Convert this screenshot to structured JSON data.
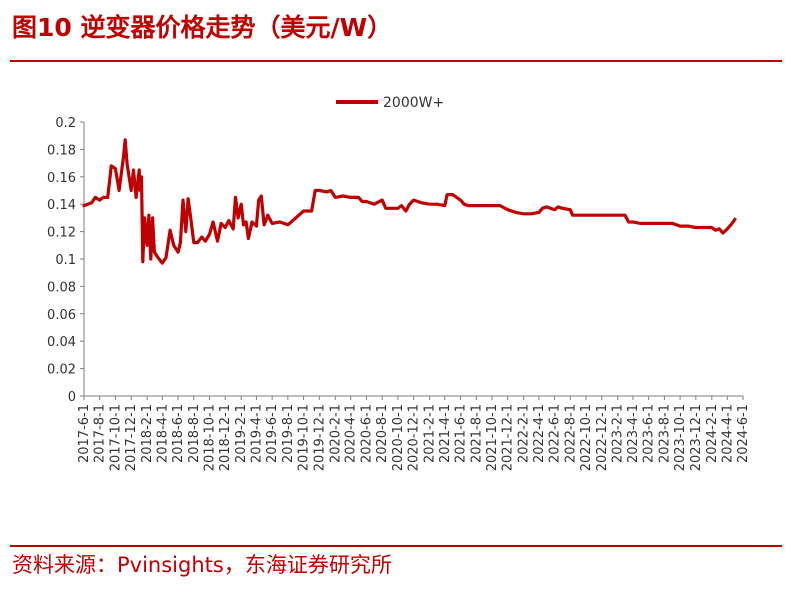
{
  "title": "图10  逆变器价格走势（美元/W）",
  "source": "资料来源：Pvinsights，东海证券研究所",
  "chart_data": {
    "type": "line",
    "ylim": [
      0,
      0.2
    ],
    "y_ticks": [
      "0",
      "0.02",
      "0.04",
      "0.06",
      "0.08",
      "0.1",
      "0.12",
      "0.14",
      "0.16",
      "0.18",
      "0.2"
    ],
    "x_ticks": [
      "2017-6-1",
      "2017-8-1",
      "2017-10-1",
      "2017-12-1",
      "2018-2-1",
      "2018-4-1",
      "2018-6-1",
      "2018-8-1",
      "2018-10-1",
      "2018-12-1",
      "2019-2-1",
      "2019-4-1",
      "2019-6-1",
      "2019-8-1",
      "2019-10-1",
      "2019-12-1",
      "2020-2-1",
      "2020-4-1",
      "2020-6-1",
      "2020-8-1",
      "2020-10-1",
      "2020-12-1",
      "2021-2-1",
      "2021-4-1",
      "2021-6-1",
      "2021-8-1",
      "2021-10-1",
      "2021-12-1",
      "2022-2-1",
      "2022-4-1",
      "2022-6-1",
      "2022-8-1",
      "2022-10-1",
      "2022-12-1",
      "2023-2-1",
      "2023-4-1",
      "2023-6-1",
      "2023-8-1",
      "2023-10-1",
      "2023-12-1",
      "2024-2-1",
      "2024-4-1",
      "2024-6-1"
    ],
    "legend": "top-center",
    "color": "#c00000",
    "series": [
      {
        "name": "2000W+",
        "points": [
          [
            "2017-6-1",
            0.139
          ],
          [
            "2017-7-1",
            0.141
          ],
          [
            "2017-7-15",
            0.145
          ],
          [
            "2017-8-1",
            0.143
          ],
          [
            "2017-8-15",
            0.145
          ],
          [
            "2017-9-1",
            0.145
          ],
          [
            "2017-9-15",
            0.168
          ],
          [
            "2017-10-1",
            0.166
          ],
          [
            "2017-10-15",
            0.15
          ],
          [
            "2017-11-1",
            0.174
          ],
          [
            "2017-11-8",
            0.187
          ],
          [
            "2017-11-15",
            0.17
          ],
          [
            "2017-12-1",
            0.15
          ],
          [
            "2017-12-10",
            0.165
          ],
          [
            "2017-12-20",
            0.145
          ],
          [
            "2018-1-1",
            0.165
          ],
          [
            "2018-1-5",
            0.15
          ],
          [
            "2018-1-10",
            0.16
          ],
          [
            "2018-1-15",
            0.098
          ],
          [
            "2018-1-22",
            0.13
          ],
          [
            "2018-2-1",
            0.11
          ],
          [
            "2018-2-8",
            0.132
          ],
          [
            "2018-2-15",
            0.1
          ],
          [
            "2018-2-22",
            0.13
          ],
          [
            "2018-3-1",
            0.105
          ],
          [
            "2018-3-15",
            0.101
          ],
          [
            "2018-4-1",
            0.097
          ],
          [
            "2018-4-15",
            0.101
          ],
          [
            "2018-5-1",
            0.121
          ],
          [
            "2018-5-15",
            0.11
          ],
          [
            "2018-6-1",
            0.105
          ],
          [
            "2018-6-10",
            0.112
          ],
          [
            "2018-6-20",
            0.143
          ],
          [
            "2018-7-1",
            0.12
          ],
          [
            "2018-7-10",
            0.144
          ],
          [
            "2018-7-20",
            0.13
          ],
          [
            "2018-8-1",
            0.112
          ],
          [
            "2018-8-15",
            0.112
          ],
          [
            "2018-9-1",
            0.116
          ],
          [
            "2018-9-15",
            0.113
          ],
          [
            "2018-10-1",
            0.118
          ],
          [
            "2018-10-15",
            0.127
          ],
          [
            "2018-11-1",
            0.113
          ],
          [
            "2018-11-15",
            0.126
          ],
          [
            "2018-12-1",
            0.123
          ],
          [
            "2018-12-15",
            0.128
          ],
          [
            "2019-1-1",
            0.122
          ],
          [
            "2019-1-10",
            0.145
          ],
          [
            "2019-1-20",
            0.13
          ],
          [
            "2019-2-1",
            0.14
          ],
          [
            "2019-2-10",
            0.125
          ],
          [
            "2019-2-20",
            0.127
          ],
          [
            "2019-3-1",
            0.115
          ],
          [
            "2019-3-15",
            0.127
          ],
          [
            "2019-4-1",
            0.124
          ],
          [
            "2019-4-10",
            0.143
          ],
          [
            "2019-4-20",
            0.146
          ],
          [
            "2019-5-1",
            0.125
          ],
          [
            "2019-5-15",
            0.132
          ],
          [
            "2019-6-1",
            0.126
          ],
          [
            "2019-7-1",
            0.127
          ],
          [
            "2019-8-1",
            0.125
          ],
          [
            "2019-9-1",
            0.13
          ],
          [
            "2019-10-1",
            0.135
          ],
          [
            "2019-11-1",
            0.135
          ],
          [
            "2019-11-15",
            0.15
          ],
          [
            "2019-12-1",
            0.15
          ],
          [
            "2020-1-1",
            0.149
          ],
          [
            "2020-1-15",
            0.15
          ],
          [
            "2020-2-1",
            0.145
          ],
          [
            "2020-3-1",
            0.146
          ],
          [
            "2020-4-1",
            0.145
          ],
          [
            "2020-5-1",
            0.145
          ],
          [
            "2020-5-15",
            0.142
          ],
          [
            "2020-6-1",
            0.142
          ],
          [
            "2020-7-1",
            0.14
          ],
          [
            "2020-8-1",
            0.143
          ],
          [
            "2020-8-15",
            0.137
          ],
          [
            "2020-9-1",
            0.137
          ],
          [
            "2020-10-1",
            0.137
          ],
          [
            "2020-10-15",
            0.139
          ],
          [
            "2020-11-1",
            0.135
          ],
          [
            "2020-11-15",
            0.14
          ],
          [
            "2020-12-1",
            0.143
          ],
          [
            "2021-1-1",
            0.141
          ],
          [
            "2021-2-1",
            0.14
          ],
          [
            "2021-3-1",
            0.14
          ],
          [
            "2021-4-1",
            0.139
          ],
          [
            "2021-4-10",
            0.147
          ],
          [
            "2021-5-1",
            0.147
          ],
          [
            "2021-6-1",
            0.143
          ],
          [
            "2021-6-15",
            0.14
          ],
          [
            "2021-7-1",
            0.139
          ],
          [
            "2021-8-1",
            0.139
          ],
          [
            "2021-9-1",
            0.139
          ],
          [
            "2021-10-1",
            0.139
          ],
          [
            "2021-11-1",
            0.139
          ],
          [
            "2021-12-1",
            0.136
          ],
          [
            "2022-1-1",
            0.134
          ],
          [
            "2022-2-1",
            0.133
          ],
          [
            "2022-3-1",
            0.133
          ],
          [
            "2022-4-1",
            0.134
          ],
          [
            "2022-4-15",
            0.137
          ],
          [
            "2022-5-1",
            0.138
          ],
          [
            "2022-6-1",
            0.136
          ],
          [
            "2022-6-15",
            0.138
          ],
          [
            "2022-7-1",
            0.137
          ],
          [
            "2022-8-1",
            0.136
          ],
          [
            "2022-8-10",
            0.132
          ],
          [
            "2022-9-1",
            0.132
          ],
          [
            "2022-10-1",
            0.132
          ],
          [
            "2022-11-1",
            0.132
          ],
          [
            "2022-12-1",
            0.132
          ],
          [
            "2023-1-1",
            0.132
          ],
          [
            "2023-2-1",
            0.132
          ],
          [
            "2023-3-1",
            0.132
          ],
          [
            "2023-3-15",
            0.127
          ],
          [
            "2023-4-1",
            0.127
          ],
          [
            "2023-5-1",
            0.126
          ],
          [
            "2023-6-1",
            0.126
          ],
          [
            "2023-7-1",
            0.126
          ],
          [
            "2023-8-1",
            0.126
          ],
          [
            "2023-9-1",
            0.126
          ],
          [
            "2023-10-1",
            0.124
          ],
          [
            "2023-11-1",
            0.124
          ],
          [
            "2023-12-1",
            0.123
          ],
          [
            "2024-1-1",
            0.123
          ],
          [
            "2024-2-1",
            0.123
          ],
          [
            "2024-2-15",
            0.121
          ],
          [
            "2024-3-1",
            0.122
          ],
          [
            "2024-3-15",
            0.119
          ],
          [
            "2024-4-1",
            0.122
          ],
          [
            "2024-4-15",
            0.125
          ],
          [
            "2024-5-1",
            0.129
          ]
        ]
      }
    ]
  }
}
